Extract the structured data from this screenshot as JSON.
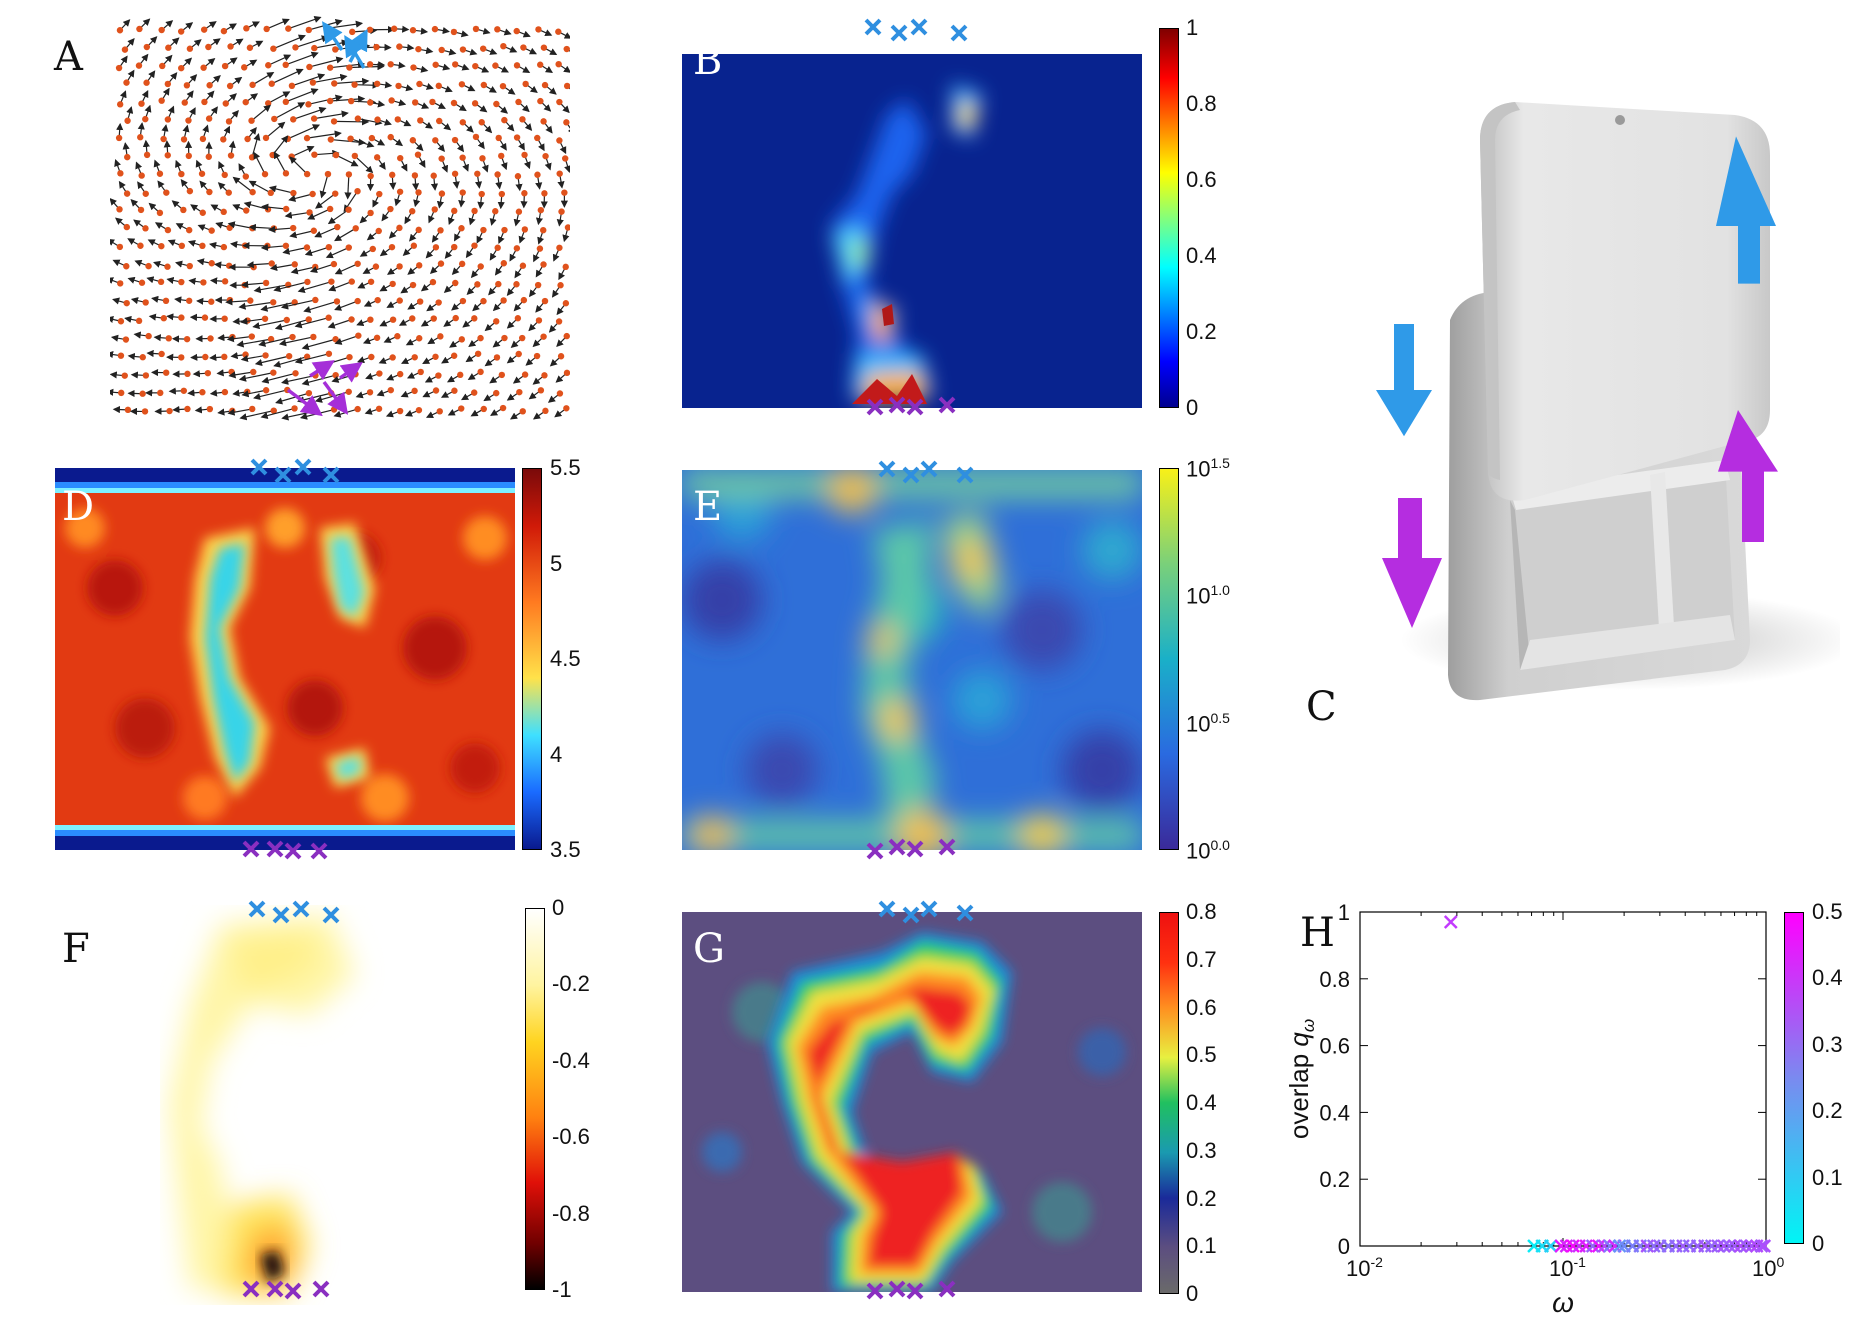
{
  "figure": {
    "panel_labels": {
      "a": "A",
      "b": "B",
      "c": "C",
      "d": "D",
      "e": "E",
      "f": "F",
      "g": "G",
      "h": "H"
    }
  },
  "colors": {
    "marker_top": "#2f8fe0",
    "marker_bottom": "#8a2fc0",
    "arrow_top": "#2f9ae8",
    "arrow_bottom": "#b52de0",
    "particle": "#e0521c"
  },
  "colorbars": {
    "b": {
      "ticks": [
        "1",
        "0.8",
        "0.6",
        "0.4",
        "0.2",
        "0"
      ]
    },
    "d": {
      "ticks": [
        "5.5",
        "5",
        "4.5",
        "4",
        "3.5"
      ]
    },
    "e": {
      "ticks": [
        {
          "base": "10",
          "exp": "1.5"
        },
        {
          "base": "10",
          "exp": "1.0"
        },
        {
          "base": "10",
          "exp": "0.5"
        },
        {
          "base": "10",
          "exp": "0.0"
        }
      ]
    },
    "f": {
      "ticks": [
        "0",
        "-0.2",
        "-0.4",
        "-0.6",
        "-0.8",
        "-1"
      ]
    },
    "g": {
      "ticks": [
        "0.8",
        "0.7",
        "0.6",
        "0.5",
        "0.4",
        "0.3",
        "0.2",
        "0.1",
        "0"
      ]
    },
    "h": {
      "ticks": [
        "0.5",
        "0.4",
        "0.3",
        "0.2",
        "0.1",
        "0"
      ]
    }
  },
  "chart_data": [
    {
      "panel": "H",
      "type": "scatter",
      "title": "",
      "xlabel": "ω",
      "ylabel": "overlap q_ω",
      "ylabel_main": "overlap ",
      "ylabel_sym": "q",
      "ylabel_sub": "ω",
      "xscale": "log",
      "xlim": [
        0.01,
        1
      ],
      "ylim": [
        0,
        1
      ],
      "xticks": [
        {
          "base": "10",
          "exp": "-2"
        },
        {
          "base": "10",
          "exp": "-1"
        },
        {
          "base": "10",
          "exp": "0"
        }
      ],
      "yticks": [
        "0",
        "0.2",
        "0.4",
        "0.6",
        "0.8",
        "1"
      ],
      "marker": "×",
      "color_scale": {
        "min": 0,
        "max": 0.5,
        "colors": [
          "#00f5f5",
          "#ff00ff"
        ]
      },
      "points": [
        {
          "x": 0.028,
          "y": 0.97,
          "c": 0.38
        },
        {
          "x": 0.072,
          "y": 0.0,
          "c": 0.02
        },
        {
          "x": 0.079,
          "y": 0.0,
          "c": 0.05
        },
        {
          "x": 0.087,
          "y": 0.0,
          "c": 0.08
        },
        {
          "x": 0.098,
          "y": 0.0,
          "c": 0.45
        },
        {
          "x": 0.104,
          "y": 0.0,
          "c": 0.42
        },
        {
          "x": 0.112,
          "y": 0.0,
          "c": 0.48
        },
        {
          "x": 0.12,
          "y": 0.0,
          "c": 0.4
        },
        {
          "x": 0.13,
          "y": 0.0,
          "c": 0.44
        },
        {
          "x": 0.14,
          "y": 0.0,
          "c": 0.3
        },
        {
          "x": 0.15,
          "y": 0.0,
          "c": 0.46
        },
        {
          "x": 0.16,
          "y": 0.0,
          "c": 0.35
        },
        {
          "x": 0.17,
          "y": 0.0,
          "c": 0.25
        },
        {
          "x": 0.18,
          "y": 0.0,
          "c": 0.41
        },
        {
          "x": 0.19,
          "y": 0.0,
          "c": 0.2
        },
        {
          "x": 0.2,
          "y": 0.0,
          "c": 0.22
        },
        {
          "x": 0.22,
          "y": 0.0,
          "c": 0.24
        },
        {
          "x": 0.24,
          "y": 0.0,
          "c": 0.26
        },
        {
          "x": 0.26,
          "y": 0.0,
          "c": 0.33
        },
        {
          "x": 0.28,
          "y": 0.0,
          "c": 0.28
        },
        {
          "x": 0.3,
          "y": 0.0,
          "c": 0.3
        },
        {
          "x": 0.33,
          "y": 0.0,
          "c": 0.27
        },
        {
          "x": 0.36,
          "y": 0.0,
          "c": 0.29
        },
        {
          "x": 0.39,
          "y": 0.0,
          "c": 0.31
        },
        {
          "x": 0.42,
          "y": 0.0,
          "c": 0.28
        },
        {
          "x": 0.46,
          "y": 0.0,
          "c": 0.3
        },
        {
          "x": 0.5,
          "y": 0.0,
          "c": 0.32
        },
        {
          "x": 0.54,
          "y": 0.0,
          "c": 0.29
        },
        {
          "x": 0.58,
          "y": 0.0,
          "c": 0.31
        },
        {
          "x": 0.62,
          "y": 0.0,
          "c": 0.33
        },
        {
          "x": 0.66,
          "y": 0.0,
          "c": 0.3
        },
        {
          "x": 0.7,
          "y": 0.0,
          "c": 0.32
        },
        {
          "x": 0.75,
          "y": 0.0,
          "c": 0.34
        },
        {
          "x": 0.8,
          "y": 0.0,
          "c": 0.31
        },
        {
          "x": 0.85,
          "y": 0.0,
          "c": 0.33
        },
        {
          "x": 0.9,
          "y": 0.0,
          "c": 0.35
        },
        {
          "x": 0.95,
          "y": 0.0,
          "c": 0.32
        },
        {
          "x": 0.98,
          "y": 0.0,
          "c": 0.34
        }
      ]
    }
  ]
}
